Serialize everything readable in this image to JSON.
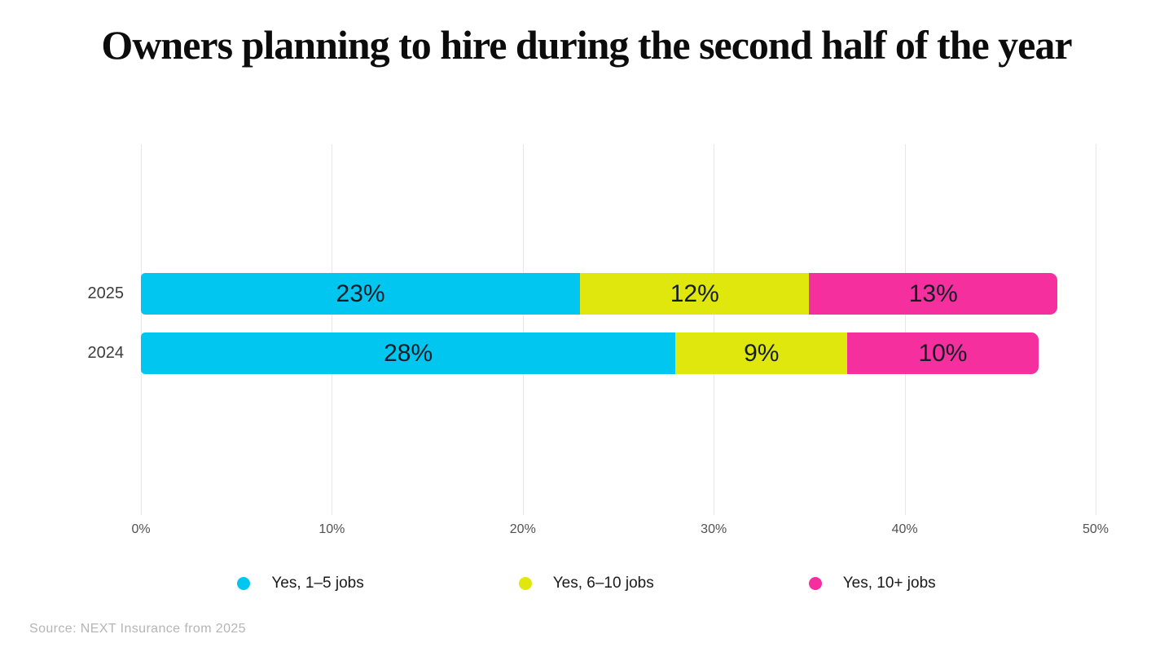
{
  "source": "Source: NEXT Insurance from 2025",
  "chart_data": {
    "type": "bar",
    "orientation": "horizontal",
    "stacked": true,
    "title": "Owners planning to hire during the second half of the year",
    "categories": [
      "2025",
      "2024"
    ],
    "series": [
      {
        "name": "Yes, 1–5 jobs",
        "color": "#00c6f0",
        "values": [
          23,
          28
        ]
      },
      {
        "name": "Yes, 6–10 jobs",
        "color": "#dfe70c",
        "values": [
          12,
          9
        ]
      },
      {
        "name": "Yes, 10+ jobs",
        "color": "#f5309e",
        "values": [
          13,
          10
        ]
      }
    ],
    "x_ticks": [
      "0%",
      "10%",
      "20%",
      "30%",
      "40%",
      "50%"
    ],
    "xlim": [
      0,
      50
    ],
    "value_suffix": "%",
    "grid": true,
    "legend_position": "bottom",
    "gridline_color": "#e7e7e7"
  }
}
